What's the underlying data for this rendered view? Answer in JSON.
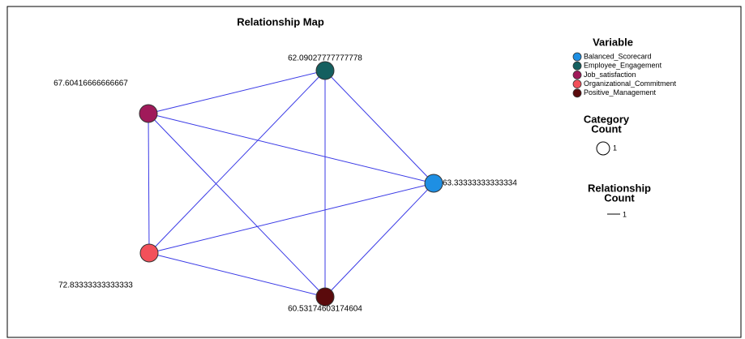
{
  "title": "Relationship Map",
  "legend": {
    "title": "Variable",
    "size_title": [
      "Category",
      "Count"
    ],
    "size_label": "1",
    "line_title": [
      "Relationship",
      "Count"
    ],
    "line_label": "1"
  },
  "nodes": [
    {
      "name": "Balanced_Scorecard",
      "value": "63.33333333333334",
      "color": "#1e8fe3"
    },
    {
      "name": "Employee_Engagement",
      "value": "62.09027777777778",
      "color": "#145f5f"
    },
    {
      "name": "Job_satisfaction",
      "value": "67.60416666666667",
      "color": "#a01a5a"
    },
    {
      "name": "Organizational_Commitment",
      "value": "72.83333333333333",
      "color": "#f2505a"
    },
    {
      "name": "Positive_Management",
      "value": "60.53174603174604",
      "color": "#5a0a0c"
    }
  ]
}
